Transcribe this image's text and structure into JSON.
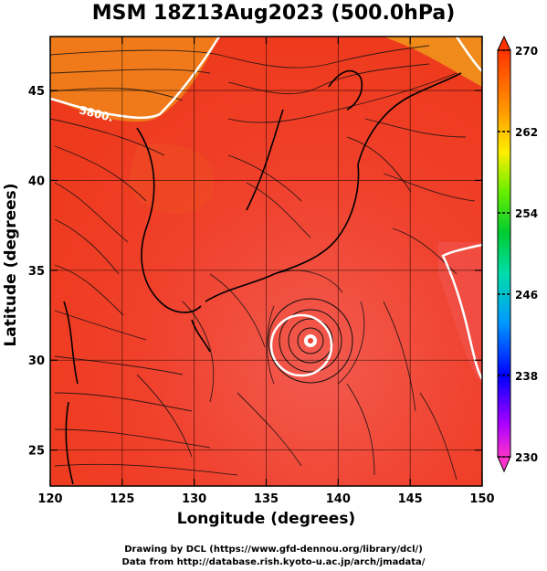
{
  "title": "MSM 18Z13Aug2023 (500.0hPa)",
  "x_axis": {
    "label": "Longitude (degrees)",
    "min": 120,
    "max": 150,
    "ticks": [
      120,
      125,
      130,
      135,
      140,
      145,
      150
    ]
  },
  "y_axis": {
    "label": "Latitude  (degrees)",
    "min": 23,
    "max": 48,
    "ticks": [
      25,
      30,
      35,
      40,
      45
    ]
  },
  "colorbar": {
    "min": 230,
    "max": 270,
    "ticks": [
      230,
      238,
      246,
      254,
      262,
      270
    ],
    "colors": [
      "#ff00ff",
      "#0000ff",
      "#00ccff",
      "#00ff66",
      "#66ff00",
      "#ffff00",
      "#ff9900",
      "#ff3300"
    ]
  },
  "contour_label": "5800.",
  "credits": {
    "line1": "Drawing by DCL (https://www.gfd-dennou.org/library/dcl/)",
    "line2": "Data from http://database.rish.kyoto-u.ac.jp/arch/jmadata/"
  }
}
